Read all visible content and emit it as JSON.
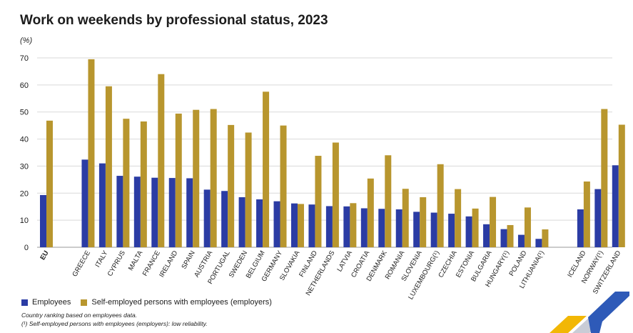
{
  "colors": {
    "employees": "#2b3ca4",
    "self_employed": "#b8962e",
    "grid": "#d9d9d9",
    "axis_text": "#1c1c1c"
  },
  "chart_data": {
    "type": "bar",
    "title": "Work on weekends by professional status, 2023",
    "unit_label": "(%)",
    "ylim": [
      0,
      70
    ],
    "yticks": [
      0,
      10,
      20,
      30,
      40,
      50,
      60,
      70
    ],
    "grid": true,
    "legend_position": "bottom-left",
    "groups": [
      [
        "EU"
      ],
      [
        "GREECE",
        "ITALY",
        "CYPRUS",
        "MALTA",
        "FRANCE",
        "IRELAND",
        "SPAIN",
        "AUSTRIA",
        "PORTUGAL",
        "SWEDEN",
        "BELGIUM",
        "GERMANY",
        "SLOVAKIA",
        "FINLAND",
        "NETHERLANDS",
        "LATVIA",
        "CROATIA",
        "DENMARK",
        "ROMANIA",
        "SLOVENIA",
        "LUXEMBOURG(¹)",
        "CZECHIA",
        "ESTONIA",
        "BULGARIA",
        "HUNGARY(¹)",
        "POLAND",
        "LITHUANIA(¹)"
      ],
      [
        "ICELAND",
        "NORWAY(¹)",
        "SWITZERLAND"
      ]
    ],
    "categories": [
      "EU",
      "GREECE",
      "ITALY",
      "CYPRUS",
      "MALTA",
      "FRANCE",
      "IRELAND",
      "SPAIN",
      "AUSTRIA",
      "PORTUGAL",
      "SWEDEN",
      "BELGIUM",
      "GERMANY",
      "SLOVAKIA",
      "FINLAND",
      "NETHERLANDS",
      "LATVIA",
      "CROATIA",
      "DENMARK",
      "ROMANIA",
      "SLOVENIA",
      "LUXEMBOURG(¹)",
      "CZECHIA",
      "ESTONIA",
      "BULGARIA",
      "HUNGARY(¹)",
      "POLAND",
      "LITHUANIA(¹)",
      "ICELAND",
      "NORWAY(¹)",
      "SWITZERLAND"
    ],
    "series": [
      {
        "name": "Employees",
        "values": [
          19.3,
          32.4,
          31.0,
          26.4,
          26.1,
          25.7,
          25.6,
          25.5,
          21.3,
          20.8,
          18.5,
          17.7,
          17.0,
          16.2,
          15.8,
          15.2,
          15.1,
          14.4,
          14.2,
          14.0,
          13.1,
          12.8,
          12.4,
          11.4,
          8.5,
          6.7,
          4.6,
          3.1,
          14.0,
          21.5,
          30.3
        ]
      },
      {
        "name": "Self-employed persons with employees (employers)",
        "values": [
          46.8,
          69.5,
          59.5,
          47.5,
          46.5,
          64.0,
          49.4,
          50.8,
          51.1,
          45.2,
          42.4,
          57.5,
          45.0,
          16.0,
          33.8,
          38.7,
          16.3,
          25.4,
          34.0,
          21.6,
          18.5,
          30.7,
          21.5,
          14.3,
          18.6,
          8.2,
          14.7,
          6.6,
          24.3,
          51.1,
          45.3
        ]
      }
    ]
  },
  "legend": {
    "employees": "Employees",
    "self_employed": "Self-employed persons with employees (employers)"
  },
  "notes": {
    "ranking": "Country ranking based on employees data.",
    "reliability": "(¹) Self-employed persons with employees (employers): low reliability."
  }
}
